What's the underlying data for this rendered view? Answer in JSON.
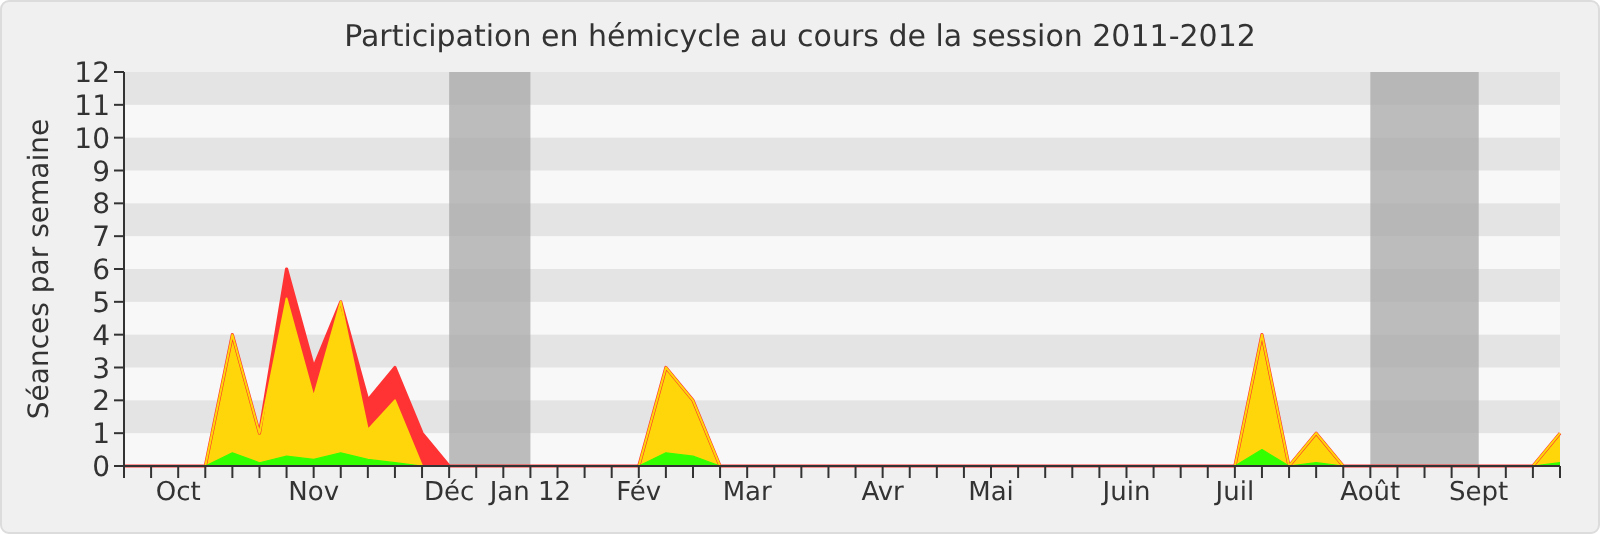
{
  "chart_data": {
    "type": "area",
    "title": "Participation en hémicycle au cours de la session 2011-2012",
    "ylabel": "Séances par semaine",
    "categories": [
      null,
      null,
      "Oct",
      null,
      null,
      null,
      null,
      "Nov",
      null,
      null,
      null,
      null,
      "Déc",
      null,
      null,
      "Jan 12",
      null,
      null,
      null,
      "Fév",
      null,
      null,
      null,
      "Mar",
      null,
      null,
      null,
      null,
      "Avr",
      null,
      null,
      null,
      "Mai",
      null,
      null,
      null,
      null,
      "Juin",
      null,
      null,
      null,
      "Juil",
      null,
      null,
      null,
      null,
      "Août",
      null,
      null,
      null,
      "Sept",
      null,
      null,
      null
    ],
    "series": [
      {
        "color": "#ff3333",
        "values": [
          0,
          0,
          0,
          0,
          4,
          1,
          6,
          3,
          5,
          2,
          3,
          1,
          0,
          0,
          0,
          0,
          0,
          0,
          0,
          0,
          3,
          2,
          0,
          0,
          0,
          0,
          0,
          0,
          0,
          0,
          0,
          0,
          0,
          0,
          0,
          0,
          0,
          0,
          0,
          0,
          0,
          0,
          4,
          0,
          1,
          0,
          0,
          0,
          0,
          0,
          0,
          0,
          0,
          1
        ]
      },
      {
        "color": "#ffd60a",
        "values": [
          0,
          0,
          0,
          0,
          4,
          1,
          5.1,
          2.1,
          5,
          1.1,
          2,
          0,
          0,
          0,
          0,
          0,
          0,
          0,
          0,
          0,
          3,
          2,
          0,
          0,
          0,
          0,
          0,
          0,
          0,
          0,
          0,
          0,
          0,
          0,
          0,
          0,
          0,
          0,
          0,
          0,
          0,
          0,
          4,
          0,
          1,
          0,
          0,
          0,
          0,
          0,
          0,
          0,
          0,
          1
        ]
      },
      {
        "color": "#33ff00",
        "values": [
          0,
          0,
          0,
          0,
          0.4,
          0.1,
          0.3,
          0.2,
          0.4,
          0.2,
          0.1,
          0,
          0,
          0,
          0,
          0,
          0,
          0,
          0,
          0,
          0.4,
          0.3,
          0,
          0,
          0,
          0,
          0,
          0,
          0,
          0,
          0,
          0,
          0,
          0,
          0,
          0,
          0,
          0,
          0,
          0,
          0,
          0,
          0.5,
          0,
          0.1,
          0,
          0,
          0,
          0,
          0,
          0,
          0,
          0,
          0.1
        ]
      }
    ],
    "ylim": [
      0,
      12
    ],
    "yticks": [
      0,
      1,
      2,
      3,
      4,
      5,
      6,
      7,
      8,
      9,
      10,
      11,
      12
    ],
    "bands": [
      {
        "axis": "x",
        "from": "Déc",
        "to": "Jan 12",
        "color": "#a8a8a8"
      },
      {
        "axis": "x",
        "from": "Août",
        "to": "Sept",
        "color": "#a8a8a8"
      }
    ]
  }
}
